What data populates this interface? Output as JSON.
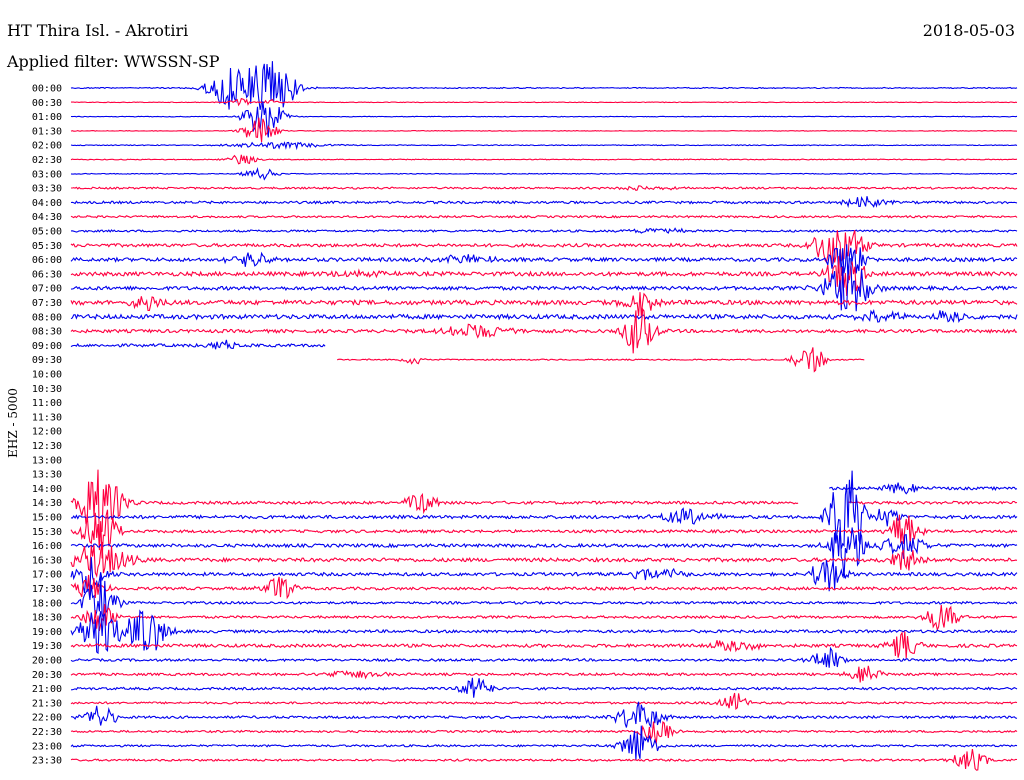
{
  "header": {
    "station": "HT Thira Isl. - Akrotiri",
    "filter": "Applied filter: WWSSN-SP",
    "date": "2018-05-03"
  },
  "colors": {
    "even_trace": "#0000ee",
    "odd_trace": "#ff0040",
    "text": "#000000"
  },
  "chart_data": {
    "type": "line",
    "title": "HT Thira Isl. - Akrotiri",
    "subtitle": "Applied filter: WWSSN-SP",
    "ylabel": "EHZ - 5000",
    "xlabel": "",
    "grid": false,
    "legend": "none",
    "trace_minutes": 30,
    "categories": [
      "00:00",
      "00:30",
      "01:00",
      "01:30",
      "02:00",
      "02:30",
      "03:00",
      "03:30",
      "04:00",
      "04:30",
      "05:00",
      "05:30",
      "06:00",
      "06:30",
      "07:00",
      "07:30",
      "08:00",
      "08:30",
      "09:00",
      "09:30",
      "10:00",
      "10:30",
      "11:00",
      "11:30",
      "12:00",
      "12:30",
      "13:00",
      "13:30",
      "14:00",
      "14:30",
      "15:00",
      "15:30",
      "16:00",
      "16:30",
      "17:00",
      "17:30",
      "18:00",
      "18:30",
      "19:00",
      "19:30",
      "20:00",
      "20:30",
      "21:00",
      "21:30",
      "22:00",
      "22:30",
      "23:00",
      "23:30"
    ],
    "series": [
      {
        "label": "00:00",
        "noise": 0.5,
        "gaps": [],
        "events": [
          [
            0.17,
            22,
            1.5
          ],
          [
            0.21,
            30,
            1.8
          ]
        ]
      },
      {
        "label": "00:30",
        "noise": 0.3,
        "gaps": [],
        "events": [
          [
            0.18,
            4,
            0.5
          ],
          [
            0.21,
            3,
            0.4
          ]
        ]
      },
      {
        "label": "01:00",
        "noise": 0.3,
        "gaps": [],
        "events": [
          [
            0.2,
            18,
            1
          ],
          [
            0.21,
            12,
            1
          ]
        ]
      },
      {
        "label": "01:30",
        "noise": 0.3,
        "gaps": [],
        "events": [
          [
            0.2,
            15,
            1
          ]
        ]
      },
      {
        "label": "02:00",
        "noise": 0.4,
        "gaps": [],
        "events": [
          [
            0.22,
            3,
            4
          ]
        ]
      },
      {
        "label": "02:30",
        "noise": 0.4,
        "gaps": [],
        "events": [
          [
            0.18,
            5,
            1
          ]
        ]
      },
      {
        "label": "03:00",
        "noise": 0.4,
        "gaps": [],
        "events": [
          [
            0.2,
            6,
            1
          ]
        ]
      },
      {
        "label": "03:30",
        "noise": 0.9,
        "gaps": [],
        "events": [
          [
            0.6,
            2,
            3
          ]
        ]
      },
      {
        "label": "04:00",
        "noise": 1.2,
        "gaps": [],
        "events": [
          [
            0.84,
            6,
            1.5
          ]
        ]
      },
      {
        "label": "04:30",
        "noise": 1.0,
        "gaps": [],
        "events": []
      },
      {
        "label": "05:00",
        "noise": 1.0,
        "gaps": [],
        "events": [
          [
            0.62,
            3,
            2
          ]
        ]
      },
      {
        "label": "05:30",
        "noise": 1.6,
        "gaps": [],
        "events": [
          [
            0.8,
            18,
            1
          ],
          [
            0.82,
            20,
            1.2
          ]
        ]
      },
      {
        "label": "06:00",
        "noise": 1.8,
        "gaps": [],
        "events": [
          [
            0.19,
            8,
            1.5
          ],
          [
            0.42,
            5,
            2
          ],
          [
            0.82,
            25,
            1
          ]
        ]
      },
      {
        "label": "06:30",
        "noise": 2.0,
        "gaps": [],
        "events": [
          [
            0.3,
            3,
            2
          ],
          [
            0.82,
            24,
            1.2
          ]
        ]
      },
      {
        "label": "07:00",
        "noise": 1.8,
        "gaps": [],
        "events": [
          [
            0.82,
            30,
            1.5
          ]
        ]
      },
      {
        "label": "07:30",
        "noise": 2.2,
        "gaps": [],
        "events": [
          [
            0.08,
            9,
            1
          ],
          [
            0.6,
            14,
            1
          ]
        ]
      },
      {
        "label": "08:00",
        "noise": 2.2,
        "gaps": [],
        "events": [
          [
            0.86,
            7,
            1.5
          ],
          [
            0.93,
            6,
            1.5
          ]
        ]
      },
      {
        "label": "08:30",
        "noise": 1.6,
        "gaps": [],
        "events": [
          [
            0.43,
            8,
            2.5
          ],
          [
            0.6,
            24,
            1
          ]
        ]
      },
      {
        "label": "09:00",
        "noise": 1.4,
        "gaps": [
          [
            0.27,
            1.0
          ]
        ],
        "events": [
          [
            0.16,
            5,
            1
          ]
        ]
      },
      {
        "label": "09:30",
        "noise": 0.6,
        "gaps": [
          [
            0.0,
            0.28
          ],
          [
            0.84,
            1.0
          ]
        ],
        "events": [
          [
            0.36,
            6,
            0.5
          ],
          [
            0.78,
            14,
            1
          ]
        ]
      },
      {
        "label": "10:00",
        "noise": 0.0,
        "gaps": [
          [
            0.0,
            1.0
          ]
        ],
        "events": []
      },
      {
        "label": "10:30",
        "noise": 0.0,
        "gaps": [
          [
            0.0,
            1.0
          ]
        ],
        "events": []
      },
      {
        "label": "11:00",
        "noise": 0.0,
        "gaps": [
          [
            0.0,
            1.0
          ]
        ],
        "events": []
      },
      {
        "label": "11:30",
        "noise": 0.0,
        "gaps": [
          [
            0.0,
            1.0
          ]
        ],
        "events": []
      },
      {
        "label": "12:00",
        "noise": 0.0,
        "gaps": [
          [
            0.0,
            1.0
          ]
        ],
        "events": []
      },
      {
        "label": "12:30",
        "noise": 0.0,
        "gaps": [
          [
            0.0,
            1.0
          ]
        ],
        "events": []
      },
      {
        "label": "13:00",
        "noise": 0.0,
        "gaps": [
          [
            0.0,
            1.0
          ]
        ],
        "events": []
      },
      {
        "label": "13:30",
        "noise": 0.0,
        "gaps": [
          [
            0.0,
            1.0
          ]
        ],
        "events": []
      },
      {
        "label": "14:00",
        "noise": 1.4,
        "gaps": [
          [
            0.0,
            0.8
          ]
        ],
        "events": [
          [
            0.88,
            6,
            1.5
          ]
        ]
      },
      {
        "label": "14:30",
        "noise": 1.4,
        "gaps": [
          [
            0.77,
            0.82
          ]
        ],
        "events": [
          [
            0.03,
            40,
            1.5
          ],
          [
            0.37,
            10,
            1
          ]
        ]
      },
      {
        "label": "15:00",
        "noise": 1.6,
        "gaps": [],
        "events": [
          [
            0.65,
            8,
            2
          ],
          [
            0.82,
            60,
            1
          ],
          [
            0.86,
            10,
            1
          ]
        ]
      },
      {
        "label": "15:30",
        "noise": 1.4,
        "gaps": [],
        "events": [
          [
            0.03,
            30,
            1
          ],
          [
            0.88,
            20,
            1
          ]
        ]
      },
      {
        "label": "16:00",
        "noise": 1.6,
        "gaps": [],
        "events": [
          [
            0.82,
            40,
            1
          ],
          [
            0.88,
            12,
            1.5
          ]
        ]
      },
      {
        "label": "16:30",
        "noise": 1.8,
        "gaps": [],
        "events": [
          [
            0.03,
            18,
            2
          ],
          [
            0.88,
            14,
            1
          ]
        ]
      },
      {
        "label": "17:00",
        "noise": 1.6,
        "gaps": [],
        "events": [
          [
            0.02,
            20,
            1
          ],
          [
            0.62,
            6,
            2
          ],
          [
            0.8,
            18,
            1
          ]
        ]
      },
      {
        "label": "17:30",
        "noise": 1.4,
        "gaps": [],
        "events": [
          [
            0.02,
            14,
            1
          ],
          [
            0.22,
            12,
            1
          ]
        ]
      },
      {
        "label": "18:00",
        "noise": 1.2,
        "gaps": [],
        "events": [
          [
            0.03,
            26,
            1
          ]
        ]
      },
      {
        "label": "18:30",
        "noise": 1.2,
        "gaps": [],
        "events": [
          [
            0.03,
            16,
            1
          ],
          [
            0.92,
            16,
            1
          ]
        ]
      },
      {
        "label": "19:00",
        "noise": 1.4,
        "gaps": [],
        "events": [
          [
            0.03,
            24,
            1.5
          ],
          [
            0.08,
            22,
            1.5
          ]
        ]
      },
      {
        "label": "19:30",
        "noise": 1.6,
        "gaps": [],
        "events": [
          [
            0.7,
            6,
            2
          ],
          [
            0.88,
            14,
            1
          ]
        ]
      },
      {
        "label": "20:00",
        "noise": 1.2,
        "gaps": [],
        "events": [
          [
            0.8,
            12,
            1
          ]
        ]
      },
      {
        "label": "20:30",
        "noise": 1.2,
        "gaps": [],
        "events": [
          [
            0.3,
            4,
            2
          ],
          [
            0.84,
            10,
            1
          ]
        ]
      },
      {
        "label": "21:00",
        "noise": 1.2,
        "gaps": [],
        "events": [
          [
            0.43,
            12,
            1
          ]
        ]
      },
      {
        "label": "21:30",
        "noise": 1.0,
        "gaps": [],
        "events": [
          [
            0.7,
            10,
            1
          ]
        ]
      },
      {
        "label": "22:00",
        "noise": 1.2,
        "gaps": [],
        "events": [
          [
            0.03,
            12,
            1
          ],
          [
            0.6,
            16,
            1.5
          ]
        ]
      },
      {
        "label": "22:30",
        "noise": 1.0,
        "gaps": [],
        "events": [
          [
            0.62,
            12,
            1
          ]
        ]
      },
      {
        "label": "23:00",
        "noise": 1.0,
        "gaps": [],
        "events": [
          [
            0.6,
            22,
            1
          ]
        ]
      },
      {
        "label": "23:30",
        "noise": 1.0,
        "gaps": [],
        "events": [
          [
            0.95,
            12,
            1
          ]
        ]
      }
    ]
  }
}
